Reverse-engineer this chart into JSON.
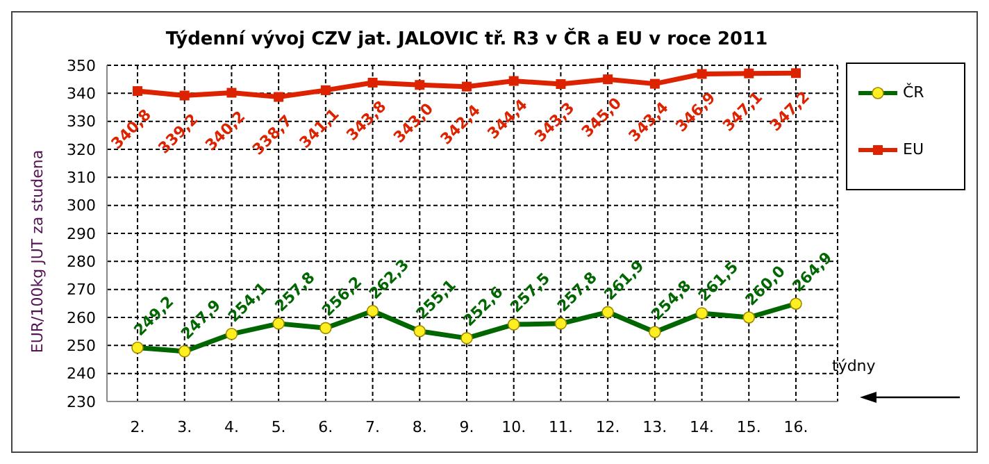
{
  "chart_data": {
    "type": "line",
    "title": "Týdenní vývoj CZV jat. JALOVIC tř. R3  v ČR a EU v roce 2011",
    "xlabel": "týdny",
    "ylabel": "EUR/100kg  JUT za studena",
    "categories": [
      "2.",
      "3.",
      "4.",
      "5.",
      "6.",
      "7.",
      "8.",
      "9.",
      "10.",
      "11.",
      "12.",
      "13.",
      "14.",
      "15.",
      "16."
    ],
    "series": [
      {
        "name": "ČR",
        "color": "#006600",
        "marker": "circle",
        "values": [
          249.2,
          247.9,
          254.1,
          257.8,
          256.2,
          262.3,
          255.1,
          252.6,
          257.5,
          257.8,
          261.9,
          254.8,
          261.5,
          260.0,
          264.9
        ],
        "value_labels": [
          "249,2",
          "247,9",
          "254,1",
          "257,8",
          "256,2",
          "262,3",
          "255,1",
          "252,6",
          "257,5",
          "257,8",
          "261,9",
          "254,8",
          "261,5",
          "260,0",
          "264,9"
        ]
      },
      {
        "name": "EU",
        "color": "#dd2200",
        "marker": "square",
        "values": [
          340.8,
          339.2,
          340.2,
          338.7,
          341.1,
          343.8,
          343.0,
          342.4,
          344.4,
          343.3,
          345.0,
          343.4,
          346.9,
          347.1,
          347.2
        ],
        "value_labels": [
          "340,8",
          "339,2",
          "340,2",
          "338,7",
          "341,1",
          "343,8",
          "343,0",
          "342,4",
          "344,4",
          "343,3",
          "345,0",
          "343,4",
          "346,9",
          "347,1",
          "347,2"
        ]
      }
    ],
    "ylim": [
      230,
      350
    ],
    "yticks": [
      230,
      240,
      250,
      260,
      270,
      280,
      290,
      300,
      310,
      320,
      330,
      340,
      350
    ],
    "grid": true,
    "legend": "right",
    "line_style": "solid"
  }
}
